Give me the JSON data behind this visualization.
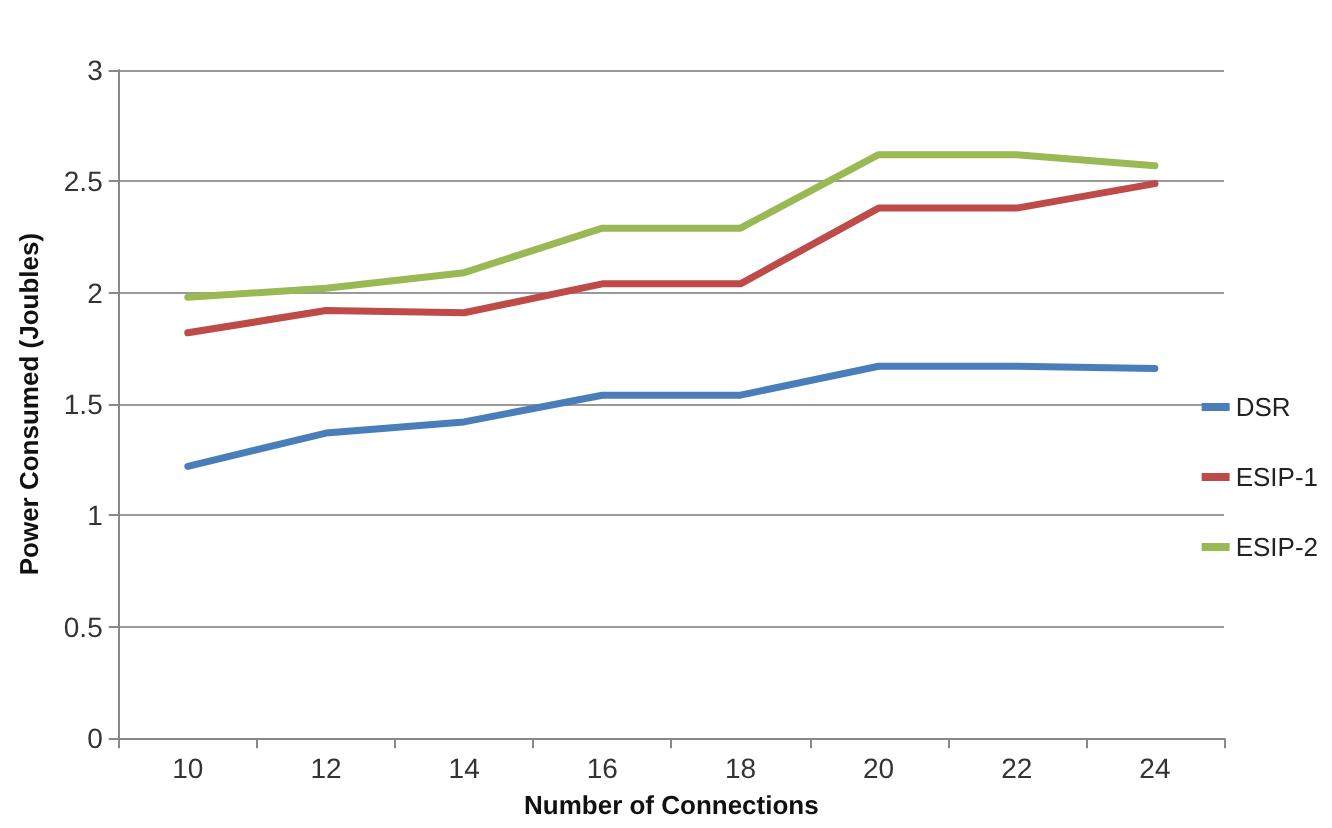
{
  "chart_data": {
    "type": "line",
    "xlabel": "Number of Connections",
    "ylabel": "Power Consumed (Joubles)",
    "categories": [
      "10",
      "12",
      "14",
      "16",
      "18",
      "20",
      "22",
      "24"
    ],
    "series": [
      {
        "name": "DSR",
        "color": "#4a7ebb",
        "values": [
          1.22,
          1.37,
          1.42,
          1.54,
          1.54,
          1.67,
          1.67,
          1.66
        ]
      },
      {
        "name": "ESIP-1",
        "color": "#be4b48",
        "values": [
          1.82,
          1.92,
          1.91,
          2.04,
          2.04,
          2.38,
          2.38,
          2.49
        ]
      },
      {
        "name": "ESIP-2",
        "color": "#98b954",
        "values": [
          1.98,
          2.02,
          2.09,
          2.29,
          2.29,
          2.62,
          2.62,
          2.57
        ]
      }
    ],
    "ylim": [
      0,
      3
    ],
    "yticks": [
      0,
      0.5,
      1,
      1.5,
      2,
      2.5,
      3
    ],
    "grid": "y",
    "legend": "right",
    "marker": "none",
    "line_style": "solid"
  }
}
